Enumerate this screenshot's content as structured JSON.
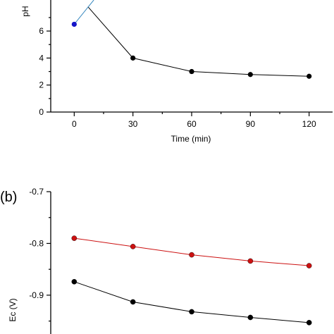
{
  "chart_data": [
    {
      "type": "scatter",
      "panel_label": "",
      "title": "",
      "xlabel": "Time (min)",
      "ylabel": "pH",
      "xlim": [
        -12,
        132
      ],
      "ylim": [
        0,
        8.3
      ],
      "x_ticks": [
        0,
        30,
        60,
        90,
        120
      ],
      "y_ticks": [
        0,
        2,
        4,
        6
      ],
      "grid": false,
      "series": [
        {
          "points": [
            [
              7,
              7.8
            ],
            [
              30,
              4.0
            ],
            [
              60,
              3.0
            ],
            [
              90,
              2.78
            ],
            [
              120,
              2.65
            ]
          ],
          "line": true,
          "markers": [
            false,
            true,
            true,
            true,
            true
          ],
          "color": "#000000"
        },
        {
          "points": [
            [
              0,
              6.5
            ]
          ],
          "line": false,
          "markers": [
            true
          ],
          "color": "#1515c8"
        },
        {
          "points": [
            [
              0,
              6.5
            ],
            [
              10,
              8.3
            ]
          ],
          "line": true,
          "markers": [
            false,
            false
          ],
          "color": "#3a8ac0"
        }
      ]
    },
    {
      "type": "line",
      "panel_label": "(b)",
      "title": "",
      "xlabel": "",
      "ylabel": "Ec (V)",
      "xlim": [
        -12,
        132
      ],
      "ylim": [
        -0.975,
        -0.7
      ],
      "x_ticks": [],
      "y_ticks": [
        "-0.7",
        "-0.8",
        "-0.9"
      ],
      "grid": false,
      "series": [
        {
          "x": [
            0,
            30,
            60,
            90,
            120
          ],
          "values": [
            -0.79,
            -0.806,
            -0.822,
            -0.834,
            -0.843
          ],
          "color": "#cc1111"
        },
        {
          "x": [
            0,
            30,
            60,
            90,
            120
          ],
          "values": [
            -0.874,
            -0.913,
            -0.932,
            -0.943,
            -0.953
          ],
          "color": "#000000"
        }
      ]
    }
  ]
}
